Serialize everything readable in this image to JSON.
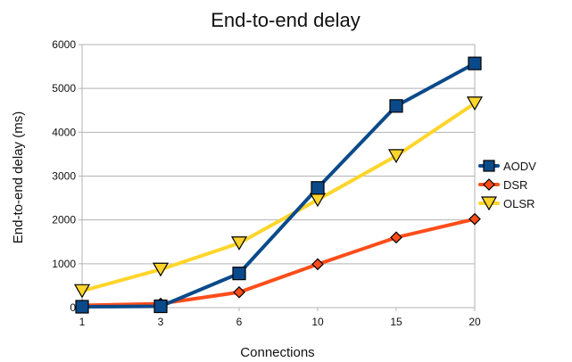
{
  "chart_data": {
    "type": "line",
    "title": "End-to-end delay",
    "xlabel": "Connections",
    "ylabel": "End-to-end delay (ms)",
    "categories": [
      "1",
      "3",
      "6",
      "10",
      "15",
      "20"
    ],
    "ylim": [
      0,
      6000
    ],
    "yticks": [
      0,
      1000,
      2000,
      3000,
      4000,
      5000,
      6000
    ],
    "grid": true,
    "legend_position": "right",
    "series": [
      {
        "name": "AODV",
        "marker": "square",
        "color": "#0b4a8a",
        "values": [
          20,
          30,
          780,
          2730,
          4600,
          5570
        ]
      },
      {
        "name": "DSR",
        "marker": "diamond",
        "color": "#ff4d1a",
        "values": [
          50,
          90,
          350,
          990,
          1600,
          2020
        ]
      },
      {
        "name": "OLSR",
        "marker": "triangle-down",
        "color": "#ffd52b",
        "values": [
          380,
          870,
          1470,
          2460,
          3460,
          4660
        ]
      }
    ]
  }
}
